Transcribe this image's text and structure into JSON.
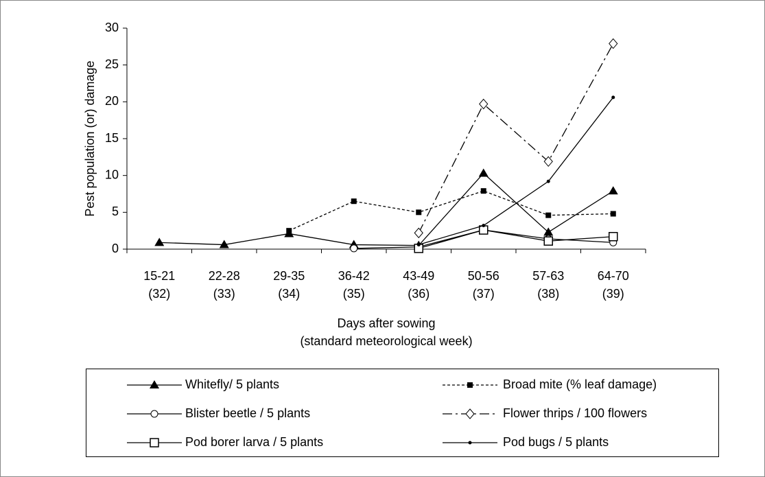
{
  "chart_data": {
    "type": "line",
    "y_label": "Pest population (or) damage",
    "x_label": [
      "Days after sowing",
      "(standard meteorological week)"
    ],
    "categories": [
      "15-21 (32)",
      "22-28 (33)",
      "29-35 (34)",
      "36-42 (35)",
      "43-49 (36)",
      "50-56 (37)",
      "57-63 (38)",
      "64-70 (39)"
    ],
    "ylim": [
      0,
      30
    ],
    "yticks": [
      0,
      5,
      10,
      15,
      20,
      25,
      30
    ],
    "series": [
      {
        "name": "Whitefly/ 5 plants",
        "color": "#000000",
        "marker": "triangle",
        "dash": "solid",
        "values": [
          0.9,
          0.6,
          2.1,
          0.6,
          0.5,
          10.3,
          2.3,
          7.9
        ]
      },
      {
        "name": "Broad mite (% leaf damage)",
        "color": "#000000",
        "marker": "square",
        "dash": "dashed",
        "values": [
          null,
          null,
          2.5,
          6.5,
          5.0,
          7.9,
          4.6,
          4.8
        ]
      },
      {
        "name": "Blister beetle / 5 plants",
        "color": "#000000",
        "marker": "circle",
        "dash": "solid",
        "values": [
          null,
          null,
          null,
          0.1,
          0.3,
          2.6,
          1.4,
          0.9
        ]
      },
      {
        "name": "Flower thrips / 100  flowers",
        "color": "#000000",
        "marker": "diamond",
        "dash": "dashdot",
        "values": [
          null,
          null,
          null,
          null,
          2.2,
          19.7,
          11.9,
          27.9
        ]
      },
      {
        "name": "Pod borer larva / 5 plants",
        "color": "#000000",
        "marker": "open-square",
        "dash": "solid",
        "values": [
          null,
          null,
          null,
          null,
          0.1,
          2.6,
          1.1,
          1.7
        ]
      },
      {
        "name": "Pod bugs / 5 plants",
        "color": "#000000",
        "marker": "dot",
        "dash": "solid",
        "values": [
          null,
          null,
          null,
          null,
          0.6,
          3.2,
          9.2,
          20.6
        ]
      }
    ]
  }
}
